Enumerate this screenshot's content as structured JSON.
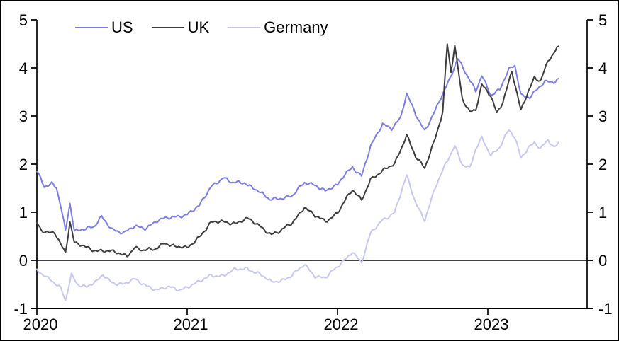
{
  "chart_data": {
    "type": "line",
    "title": "",
    "xlabel": "",
    "ylabel": "",
    "x_unit": "decimal_year",
    "xlim": [
      2020.0,
      2023.66
    ],
    "ylim": [
      -1,
      5
    ],
    "xticks": [
      2020,
      2021,
      2022,
      2023
    ],
    "yticks_left": [
      5,
      4,
      3,
      2,
      1,
      0,
      -1
    ],
    "yticks_right": [
      5,
      4,
      3,
      2,
      1,
      0,
      -1
    ],
    "grid": false,
    "zero_line": true,
    "legend_position": "top",
    "axis_color": "#000000",
    "background_color": "#ffffff",
    "series": [
      {
        "name": "US",
        "color": "#7b7de2",
        "points": [
          [
            2020.0,
            1.87
          ],
          [
            2020.05,
            1.55
          ],
          [
            2020.1,
            1.6
          ],
          [
            2020.13,
            1.5
          ],
          [
            2020.16,
            1.1
          ],
          [
            2020.19,
            0.6
          ],
          [
            2020.22,
            1.18
          ],
          [
            2020.25,
            0.62
          ],
          [
            2020.3,
            0.66
          ],
          [
            2020.38,
            0.68
          ],
          [
            2020.43,
            0.9
          ],
          [
            2020.5,
            0.66
          ],
          [
            2020.58,
            0.56
          ],
          [
            2020.65,
            0.7
          ],
          [
            2020.72,
            0.68
          ],
          [
            2020.8,
            0.82
          ],
          [
            2020.88,
            0.88
          ],
          [
            2020.95,
            0.93
          ],
          [
            2021.0,
            0.96
          ],
          [
            2021.08,
            1.12
          ],
          [
            2021.16,
            1.55
          ],
          [
            2021.24,
            1.72
          ],
          [
            2021.3,
            1.6
          ],
          [
            2021.38,
            1.62
          ],
          [
            2021.45,
            1.5
          ],
          [
            2021.55,
            1.25
          ],
          [
            2021.62,
            1.3
          ],
          [
            2021.7,
            1.35
          ],
          [
            2021.78,
            1.6
          ],
          [
            2021.85,
            1.58
          ],
          [
            2021.92,
            1.45
          ],
          [
            2022.0,
            1.55
          ],
          [
            2022.05,
            1.8
          ],
          [
            2022.1,
            1.95
          ],
          [
            2022.16,
            1.75
          ],
          [
            2022.22,
            2.35
          ],
          [
            2022.3,
            2.85
          ],
          [
            2022.36,
            2.75
          ],
          [
            2022.42,
            2.95
          ],
          [
            2022.46,
            3.45
          ],
          [
            2022.52,
            3.05
          ],
          [
            2022.58,
            2.7
          ],
          [
            2022.65,
            3.1
          ],
          [
            2022.7,
            3.45
          ],
          [
            2022.75,
            3.8
          ],
          [
            2022.8,
            4.22
          ],
          [
            2022.86,
            3.85
          ],
          [
            2022.92,
            3.5
          ],
          [
            2022.96,
            3.85
          ],
          [
            2023.02,
            3.45
          ],
          [
            2023.08,
            3.55
          ],
          [
            2023.14,
            3.95
          ],
          [
            2023.18,
            4.05
          ],
          [
            2023.22,
            3.45
          ],
          [
            2023.28,
            3.4
          ],
          [
            2023.33,
            3.55
          ],
          [
            2023.38,
            3.7
          ],
          [
            2023.44,
            3.72
          ],
          [
            2023.47,
            3.78
          ]
        ]
      },
      {
        "name": "UK",
        "color": "#3d3d3d",
        "points": [
          [
            2020.0,
            0.78
          ],
          [
            2020.03,
            0.6
          ],
          [
            2020.08,
            0.56
          ],
          [
            2020.12,
            0.58
          ],
          [
            2020.16,
            0.35
          ],
          [
            2020.19,
            0.16
          ],
          [
            2020.22,
            0.8
          ],
          [
            2020.25,
            0.35
          ],
          [
            2020.3,
            0.3
          ],
          [
            2020.38,
            0.22
          ],
          [
            2020.45,
            0.2
          ],
          [
            2020.52,
            0.16
          ],
          [
            2020.6,
            0.1
          ],
          [
            2020.65,
            0.28
          ],
          [
            2020.7,
            0.2
          ],
          [
            2020.78,
            0.22
          ],
          [
            2020.85,
            0.38
          ],
          [
            2020.92,
            0.28
          ],
          [
            2021.0,
            0.25
          ],
          [
            2021.08,
            0.5
          ],
          [
            2021.16,
            0.78
          ],
          [
            2021.24,
            0.8
          ],
          [
            2021.32,
            0.78
          ],
          [
            2021.4,
            0.86
          ],
          [
            2021.48,
            0.72
          ],
          [
            2021.56,
            0.55
          ],
          [
            2021.62,
            0.6
          ],
          [
            2021.7,
            0.78
          ],
          [
            2021.78,
            1.12
          ],
          [
            2021.85,
            0.92
          ],
          [
            2021.92,
            0.8
          ],
          [
            2022.0,
            1.0
          ],
          [
            2022.05,
            1.25
          ],
          [
            2022.1,
            1.45
          ],
          [
            2022.16,
            1.25
          ],
          [
            2022.22,
            1.7
          ],
          [
            2022.3,
            1.85
          ],
          [
            2022.38,
            2.0
          ],
          [
            2022.46,
            2.62
          ],
          [
            2022.52,
            2.15
          ],
          [
            2022.58,
            1.9
          ],
          [
            2022.65,
            2.55
          ],
          [
            2022.7,
            3.1
          ],
          [
            2022.73,
            4.5
          ],
          [
            2022.755,
            3.9
          ],
          [
            2022.78,
            4.45
          ],
          [
            2022.83,
            3.35
          ],
          [
            2022.88,
            3.1
          ],
          [
            2022.92,
            3.15
          ],
          [
            2022.96,
            3.65
          ],
          [
            2023.02,
            3.4
          ],
          [
            2023.06,
            3.05
          ],
          [
            2023.1,
            3.3
          ],
          [
            2023.16,
            3.95
          ],
          [
            2023.22,
            3.1
          ],
          [
            2023.27,
            3.5
          ],
          [
            2023.31,
            3.8
          ],
          [
            2023.35,
            3.75
          ],
          [
            2023.4,
            4.15
          ],
          [
            2023.44,
            4.3
          ],
          [
            2023.47,
            4.45
          ]
        ]
      },
      {
        "name": "Germany",
        "color": "#c7c8f0",
        "points": [
          [
            2020.0,
            -0.2
          ],
          [
            2020.05,
            -0.3
          ],
          [
            2020.1,
            -0.42
          ],
          [
            2020.16,
            -0.6
          ],
          [
            2020.19,
            -0.85
          ],
          [
            2020.23,
            -0.3
          ],
          [
            2020.27,
            -0.48
          ],
          [
            2020.33,
            -0.55
          ],
          [
            2020.4,
            -0.45
          ],
          [
            2020.44,
            -0.3
          ],
          [
            2020.5,
            -0.45
          ],
          [
            2020.58,
            -0.5
          ],
          [
            2020.65,
            -0.4
          ],
          [
            2020.72,
            -0.5
          ],
          [
            2020.8,
            -0.62
          ],
          [
            2020.88,
            -0.56
          ],
          [
            2020.95,
            -0.6
          ],
          [
            2021.0,
            -0.55
          ],
          [
            2021.08,
            -0.46
          ],
          [
            2021.16,
            -0.3
          ],
          [
            2021.24,
            -0.32
          ],
          [
            2021.32,
            -0.2
          ],
          [
            2021.4,
            -0.16
          ],
          [
            2021.48,
            -0.28
          ],
          [
            2021.56,
            -0.46
          ],
          [
            2021.62,
            -0.42
          ],
          [
            2021.7,
            -0.3
          ],
          [
            2021.78,
            -0.1
          ],
          [
            2021.85,
            -0.32
          ],
          [
            2021.92,
            -0.35
          ],
          [
            2022.0,
            -0.15
          ],
          [
            2022.05,
            0.01
          ],
          [
            2022.1,
            0.2
          ],
          [
            2022.16,
            -0.05
          ],
          [
            2022.22,
            0.55
          ],
          [
            2022.3,
            0.85
          ],
          [
            2022.38,
            1.0
          ],
          [
            2022.46,
            1.75
          ],
          [
            2022.52,
            1.2
          ],
          [
            2022.58,
            0.85
          ],
          [
            2022.65,
            1.5
          ],
          [
            2022.72,
            2.0
          ],
          [
            2022.78,
            2.4
          ],
          [
            2022.83,
            2.0
          ],
          [
            2022.88,
            1.9
          ],
          [
            2022.92,
            2.3
          ],
          [
            2022.96,
            2.55
          ],
          [
            2023.02,
            2.2
          ],
          [
            2023.08,
            2.35
          ],
          [
            2023.14,
            2.7
          ],
          [
            2023.18,
            2.55
          ],
          [
            2023.22,
            2.15
          ],
          [
            2023.27,
            2.35
          ],
          [
            2023.31,
            2.45
          ],
          [
            2023.35,
            2.3
          ],
          [
            2023.4,
            2.5
          ],
          [
            2023.44,
            2.35
          ],
          [
            2023.47,
            2.45
          ]
        ]
      }
    ]
  }
}
